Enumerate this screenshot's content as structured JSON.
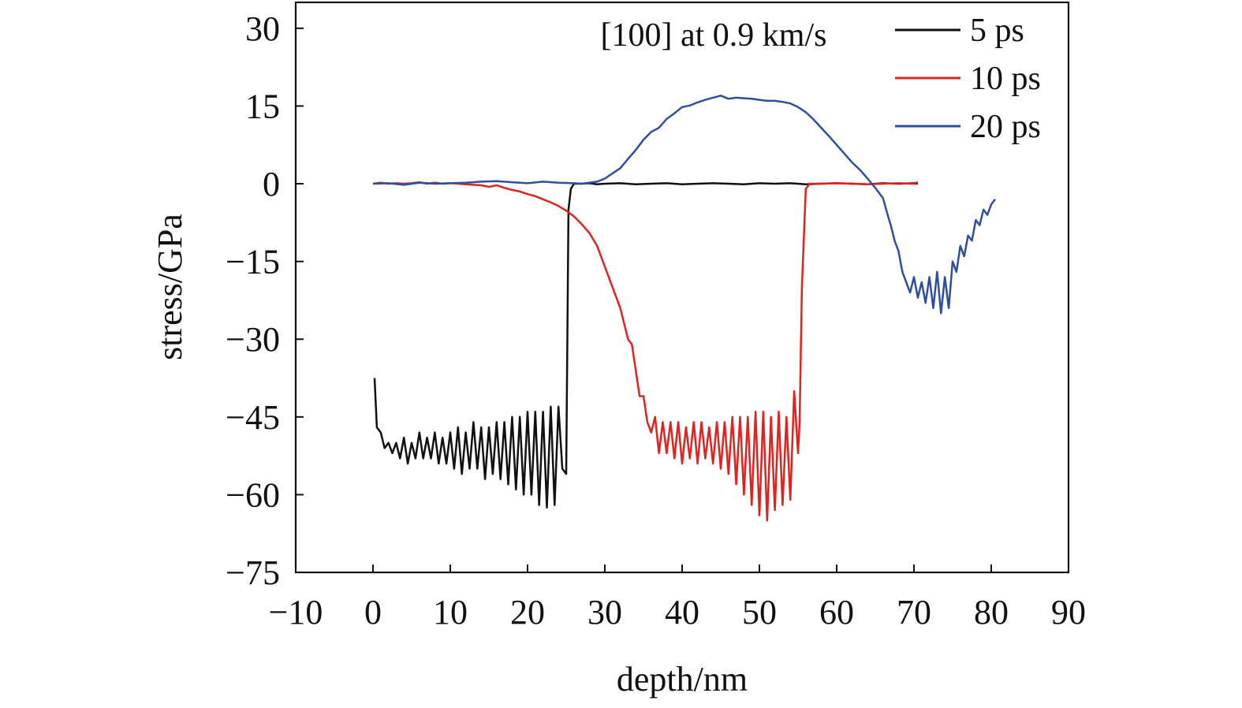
{
  "chart_data": {
    "type": "line",
    "annotation": "[100] at 0.9 km/s",
    "xlabel": "depth/nm",
    "ylabel": "stress/GPa",
    "xlim": [
      -10,
      90
    ],
    "ylim": [
      -75,
      35
    ],
    "xticks": [
      -10,
      0,
      10,
      20,
      30,
      40,
      50,
      60,
      70,
      80,
      90
    ],
    "yticks": [
      30,
      15,
      0,
      -15,
      -30,
      -45,
      -60,
      -75
    ],
    "xtick_labels": [
      "−10",
      "0",
      "10",
      "20",
      "30",
      "40",
      "50",
      "60",
      "70",
      "80",
      "90"
    ],
    "ytick_labels": [
      "30",
      "15",
      "0",
      "−15",
      "−30",
      "−45",
      "−60",
      "−75"
    ],
    "grid": false,
    "legend_position": "top-right",
    "series": [
      {
        "name": "5 ps",
        "color": "#111111",
        "x": [
          0.2,
          0.5,
          1.0,
          1.5,
          2.0,
          2.5,
          3.0,
          3.5,
          4.0,
          4.5,
          5.0,
          5.5,
          6.0,
          6.5,
          7.0,
          7.5,
          8.0,
          8.5,
          9.0,
          9.5,
          10.0,
          10.5,
          11.0,
          11.5,
          12.0,
          12.5,
          13.0,
          13.5,
          14.0,
          14.5,
          15.0,
          15.5,
          16.0,
          16.5,
          17.0,
          17.5,
          18.0,
          18.5,
          19.0,
          19.5,
          20.0,
          20.5,
          21.0,
          21.5,
          22.0,
          22.5,
          23.0,
          23.5,
          24.0,
          24.5,
          25.0,
          25.3,
          25.6,
          26.0,
          27,
          28,
          29,
          30,
          32,
          34,
          36,
          38,
          40,
          42,
          44,
          46,
          48,
          50,
          52,
          54,
          56,
          58,
          60,
          62,
          64,
          66,
          68,
          70,
          70.5
        ],
        "y": [
          -37.5,
          -47,
          -48,
          -51,
          -50,
          -52,
          -50,
          -53,
          -49,
          -54,
          -50,
          -53,
          -48,
          -53,
          -49,
          -53,
          -48,
          -54,
          -49,
          -54,
          -48,
          -55,
          -47,
          -56,
          -48,
          -55,
          -46,
          -55,
          -47,
          -57,
          -47,
          -56,
          -46,
          -57,
          -46,
          -58,
          -45,
          -59,
          -45,
          -60,
          -44,
          -60,
          -44,
          -62,
          -44,
          -62.5,
          -43,
          -62,
          -43,
          -55,
          -56,
          -5,
          -1,
          0,
          0,
          0.1,
          -0.1,
          0,
          0.1,
          -0.1,
          0,
          0.1,
          -0.1,
          0,
          0.1,
          0,
          -0.1,
          0.1,
          0,
          0.1,
          -0.1,
          0,
          0.1,
          0,
          -0.1,
          0.1,
          0,
          0.1,
          0
        ]
      },
      {
        "name": "10 ps",
        "color": "#e0231f",
        "x": [
          0,
          1,
          2,
          3,
          4,
          5,
          6,
          7,
          8,
          9,
          10,
          11,
          12,
          13,
          14,
          15,
          16,
          17,
          18,
          19,
          20,
          21,
          22,
          23,
          24,
          25,
          26,
          27,
          28,
          29,
          30,
          31,
          32,
          33,
          33.5,
          34,
          34.5,
          35,
          35.5,
          36,
          36.5,
          37,
          37.5,
          38,
          38.5,
          39,
          39.5,
          40,
          40.5,
          41,
          41.5,
          42,
          42.5,
          43,
          43.5,
          44,
          44.5,
          45,
          45.5,
          46,
          46.5,
          47,
          47.5,
          48,
          48.5,
          49,
          49.5,
          50,
          50.5,
          51,
          51.5,
          52,
          52.5,
          53,
          53.5,
          54,
          54.5,
          55,
          55.2,
          55.5,
          56,
          56.5,
          58,
          60,
          62,
          64,
          66,
          68,
          70,
          70.5
        ],
        "y": [
          0,
          0.2,
          0,
          0.1,
          0,
          0.1,
          0.3,
          0,
          0.2,
          0,
          0.1,
          0,
          -0.1,
          -0.2,
          -0.3,
          -0.6,
          -0.3,
          -0.8,
          -1.2,
          -1.5,
          -2,
          -2.4,
          -3,
          -3.6,
          -4.3,
          -5.2,
          -6.3,
          -7.8,
          -9.5,
          -12,
          -16,
          -20,
          -24,
          -30,
          -31,
          -36,
          -41,
          -41,
          -46,
          -48,
          -45,
          -52,
          -46,
          -52,
          -46,
          -53,
          -46,
          -54,
          -47,
          -53,
          -46,
          -54,
          -46,
          -53,
          -47,
          -54,
          -46,
          -55,
          -46,
          -56,
          -45,
          -58,
          -45,
          -60,
          -45,
          -62,
          -44,
          -64,
          -44,
          -65,
          -45,
          -63,
          -44,
          -62,
          -45,
          -61,
          -40,
          -52,
          -46,
          -20,
          -1,
          0,
          0,
          0.1,
          0,
          -0.1,
          0,
          0.1,
          0,
          0.3
        ]
      },
      {
        "name": "20 ps",
        "color": "#2e4ea3",
        "x": [
          0,
          2,
          4,
          6,
          8,
          10,
          12,
          14,
          16,
          18,
          20,
          22,
          24,
          26,
          27,
          28,
          29,
          30,
          31,
          32,
          33,
          34,
          35,
          36,
          37,
          38,
          39,
          40,
          41,
          42,
          43,
          44,
          45,
          46,
          47,
          48,
          49,
          50,
          51,
          52,
          53,
          54,
          55,
          56,
          57,
          58,
          59,
          60,
          61,
          62,
          63,
          64,
          65,
          66,
          66.5,
          67,
          67.5,
          68,
          68.5,
          69,
          69.5,
          70,
          70.5,
          71,
          71.5,
          72,
          72.5,
          73,
          73.5,
          74,
          74.5,
          75,
          75.5,
          76,
          76.5,
          77,
          77.5,
          78,
          78.5,
          79,
          79.5,
          80,
          80.5
        ],
        "y": [
          0,
          0.1,
          -0.2,
          0.2,
          0,
          0.1,
          0.2,
          0.4,
          0.5,
          0.3,
          0.1,
          0.4,
          0.2,
          0.1,
          0,
          0.2,
          0.4,
          1,
          2,
          3,
          4.8,
          6.5,
          8.5,
          10,
          10.8,
          12.5,
          13.6,
          14.8,
          15.1,
          15.7,
          16.2,
          16.6,
          17,
          16.4,
          16.6,
          16.5,
          16.4,
          16.2,
          16,
          16,
          15.8,
          15.5,
          14.8,
          13.8,
          12.4,
          10.8,
          9.2,
          7.5,
          5.8,
          4.1,
          2.7,
          1,
          -0.8,
          -2.8,
          -5.5,
          -8,
          -11,
          -13,
          -17,
          -19,
          -21,
          -18,
          -22,
          -19,
          -23,
          -18,
          -24,
          -17,
          -25,
          -18,
          -24,
          -15,
          -17,
          -12,
          -14,
          -10,
          -11,
          -7,
          -8,
          -5,
          -6,
          -4,
          -3
        ]
      }
    ]
  }
}
